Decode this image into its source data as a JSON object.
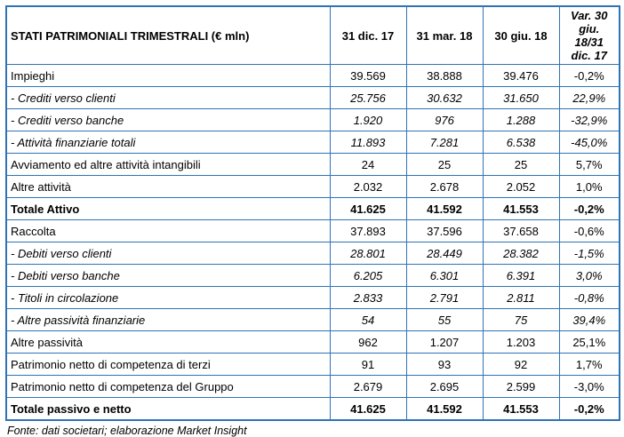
{
  "colors": {
    "border": "#2E74B5",
    "text": "#000000",
    "background": "#FFFFFF"
  },
  "table": {
    "title": "STATI PATRIMONIALI TRIMESTRALI (€ mln)",
    "columns": [
      "31 dic. 17",
      "31 mar. 18",
      "30 giu. 18",
      "Var. 30 giu. 18/31 dic. 17"
    ],
    "rows": [
      {
        "label": "Impieghi",
        "values": [
          "39.569",
          "38.888",
          "39.476",
          "-0,2%"
        ],
        "style": "normal"
      },
      {
        "label": "- Crediti verso clienti",
        "values": [
          "25.756",
          "30.632",
          "31.650",
          "22,9%"
        ],
        "style": "italic"
      },
      {
        "label": "- Crediti verso banche",
        "values": [
          "1.920",
          "976",
          "1.288",
          "-32,9%"
        ],
        "style": "italic"
      },
      {
        "label": "- Attività finanziarie totali",
        "values": [
          "11.893",
          "7.281",
          "6.538",
          "-45,0%"
        ],
        "style": "italic"
      },
      {
        "label": "Avviamento ed altre attività intangibili",
        "values": [
          "24",
          "25",
          "25",
          "5,7%"
        ],
        "style": "normal"
      },
      {
        "label": "Altre attività",
        "values": [
          "2.032",
          "2.678",
          "2.052",
          "1,0%"
        ],
        "style": "normal"
      },
      {
        "label": "Totale Attivo",
        "values": [
          "41.625",
          "41.592",
          "41.553",
          "-0,2%"
        ],
        "style": "bold"
      },
      {
        "label": "Raccolta",
        "values": [
          "37.893",
          "37.596",
          "37.658",
          "-0,6%"
        ],
        "style": "normal"
      },
      {
        "label": "- Debiti verso clienti",
        "values": [
          "28.801",
          "28.449",
          "28.382",
          "-1,5%"
        ],
        "style": "italic"
      },
      {
        "label": "- Debiti verso banche",
        "values": [
          "6.205",
          "6.301",
          "6.391",
          "3,0%"
        ],
        "style": "italic"
      },
      {
        "label": "- Titoli in circolazione",
        "values": [
          "2.833",
          "2.791",
          "2.811",
          "-0,8%"
        ],
        "style": "italic"
      },
      {
        "label": "- Altre passività finanziarie",
        "values": [
          "54",
          "55",
          "75",
          "39,4%"
        ],
        "style": "italic"
      },
      {
        "label": "Altre passività",
        "values": [
          "962",
          "1.207",
          "1.203",
          "25,1%"
        ],
        "style": "normal"
      },
      {
        "label": "Patrimonio netto di competenza di terzi",
        "values": [
          "91",
          "93",
          "92",
          "1,7%"
        ],
        "style": "normal"
      },
      {
        "label": "Patrimonio netto di competenza del Gruppo",
        "values": [
          "2.679",
          "2.695",
          "2.599",
          "-3,0%"
        ],
        "style": "normal"
      },
      {
        "label": "Totale passivo e netto",
        "values": [
          "41.625",
          "41.592",
          "41.553",
          "-0,2%"
        ],
        "style": "bold"
      }
    ],
    "source_note": "Fonte: dati societari; elaborazione Market Insight"
  }
}
